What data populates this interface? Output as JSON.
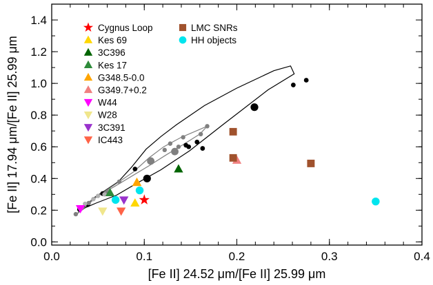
{
  "chart_data": {
    "type": "scatter",
    "title": "",
    "xlabel": "[Fe II] 24.52 μm/[Fe II] 25.99 μm",
    "ylabel": "[Fe II] 17.94 μm/[Fe II] 25.99 μm",
    "xlim": [
      0.0,
      0.4
    ],
    "ylim": [
      -0.02,
      1.5
    ],
    "xticks": [
      0.0,
      0.1,
      0.2,
      0.3,
      0.4
    ],
    "xtick_labels": [
      "0.0",
      "0.1",
      "0.2",
      "0.3",
      "0.4"
    ],
    "yticks": [
      0.0,
      0.2,
      0.4,
      0.6,
      0.8,
      1.0,
      1.2,
      1.4
    ],
    "ytick_labels": [
      "0.0",
      "0.2",
      "0.4",
      "0.6",
      "0.8",
      "1.0",
      "1.2",
      "1.4"
    ],
    "grid": false,
    "legend_position": "top-left",
    "model_curves": [
      {
        "color": "#000000",
        "points": [
          [
            0.028,
            0.18
          ],
          [
            0.033,
            0.205
          ],
          [
            0.037,
            0.23
          ],
          [
            0.046,
            0.28
          ],
          [
            0.054,
            0.31
          ],
          [
            0.072,
            0.38
          ],
          [
            0.086,
            0.47
          ],
          [
            0.102,
            0.585
          ],
          [
            0.118,
            0.665
          ],
          [
            0.135,
            0.74
          ],
          [
            0.165,
            0.86
          ],
          [
            0.2,
            0.97
          ],
          [
            0.24,
            1.08
          ],
          [
            0.258,
            1.11
          ],
          [
            0.262,
            1.06
          ],
          [
            0.234,
            0.96
          ],
          [
            0.185,
            0.74
          ],
          [
            0.149,
            0.575
          ],
          [
            0.118,
            0.455
          ],
          [
            0.092,
            0.37
          ],
          [
            0.07,
            0.295
          ],
          [
            0.048,
            0.245
          ],
          [
            0.036,
            0.215
          ],
          [
            0.03,
            0.19
          ],
          [
            0.028,
            0.18
          ]
        ]
      },
      {
        "color": "#808080",
        "points": [
          [
            0.026,
            0.17
          ],
          [
            0.03,
            0.195
          ],
          [
            0.034,
            0.22
          ],
          [
            0.043,
            0.265
          ],
          [
            0.055,
            0.31
          ],
          [
            0.073,
            0.38
          ],
          [
            0.088,
            0.44
          ],
          [
            0.105,
            0.53
          ],
          [
            0.121,
            0.6
          ],
          [
            0.14,
            0.66
          ],
          [
            0.16,
            0.71
          ],
          [
            0.168,
            0.73
          ],
          [
            0.16,
            0.68
          ],
          [
            0.141,
            0.61
          ],
          [
            0.124,
            0.55
          ],
          [
            0.105,
            0.48
          ],
          [
            0.088,
            0.42
          ],
          [
            0.068,
            0.35
          ],
          [
            0.05,
            0.29
          ],
          [
            0.038,
            0.23
          ],
          [
            0.03,
            0.19
          ],
          [
            0.026,
            0.17
          ]
        ]
      }
    ],
    "model_points": [
      {
        "color": "#000000",
        "size": 3.4,
        "points": [
          [
            0.03,
            0.205
          ],
          [
            0.039,
            0.235
          ],
          [
            0.055,
            0.305
          ],
          [
            0.09,
            0.46
          ],
          [
            0.145,
            0.61
          ],
          [
            0.148,
            0.6
          ],
          [
            0.157,
            0.63
          ],
          [
            0.163,
            0.59
          ],
          [
            0.261,
            0.99
          ],
          [
            0.275,
            1.02
          ]
        ]
      },
      {
        "color": "#000000",
        "size": 5.6,
        "points": [
          [
            0.103,
            0.4
          ],
          [
            0.219,
            0.85
          ]
        ]
      },
      {
        "color": "#808080",
        "size": 3.2,
        "points": [
          [
            0.026,
            0.175
          ],
          [
            0.033,
            0.215
          ],
          [
            0.04,
            0.245
          ],
          [
            0.06,
            0.31
          ],
          [
            0.073,
            0.38
          ],
          [
            0.122,
            0.58
          ],
          [
            0.128,
            0.62
          ],
          [
            0.137,
            0.6
          ],
          [
            0.142,
            0.66
          ],
          [
            0.161,
            0.68
          ],
          [
            0.168,
            0.73
          ]
        ]
      },
      {
        "color": "#808080",
        "size": 5.4,
        "points": [
          [
            0.107,
            0.51
          ],
          [
            0.133,
            0.57
          ]
        ]
      },
      {
        "color": "#b0b0b0",
        "size": 3.2,
        "points": [
          [
            0.036,
            0.24
          ],
          [
            0.045,
            0.27
          ],
          [
            0.05,
            0.29
          ],
          [
            0.057,
            0.3
          ]
        ]
      }
    ],
    "series": [
      {
        "name": "Cygnus Loop",
        "marker": "star",
        "color": "#ff0000",
        "x": [
          0.1
        ],
        "y": [
          0.265
        ]
      },
      {
        "name": "Kes 69",
        "marker": "triangle-up",
        "color": "#ffd700",
        "x": [
          0.09,
          0.092
        ],
        "y": [
          0.245,
          0.375
        ]
      },
      {
        "name": "3C396",
        "marker": "triangle-up",
        "color": "#006400",
        "x": [
          0.137
        ],
        "y": [
          0.46
        ]
      },
      {
        "name": "Kes 17",
        "marker": "triangle-up",
        "color": "#2e8b3a",
        "x": [
          0.063
        ],
        "y": [
          0.31
        ]
      },
      {
        "name": "G348.5-0.0",
        "marker": "triangle-up",
        "color": "#ffa500",
        "x": [
          0.092
        ],
        "y": [
          0.375
        ]
      },
      {
        "name": "G349.7+0.2",
        "marker": "triangle-up",
        "color": "#f08080",
        "x": [
          0.2
        ],
        "y": [
          0.515
        ]
      },
      {
        "name": "W44",
        "marker": "triangle-down",
        "color": "#ff00ff",
        "x": [
          0.031
        ],
        "y": [
          0.21
        ]
      },
      {
        "name": "W28",
        "marker": "triangle-down",
        "color": "#f0e68c",
        "x": [
          0.055
        ],
        "y": [
          0.195
        ]
      },
      {
        "name": "3C391",
        "marker": "triangle-down",
        "color": "#9932cc",
        "x": [
          0.078
        ],
        "y": [
          0.265
        ]
      },
      {
        "name": "IC443",
        "marker": "triangle-down",
        "color": "#ff6347",
        "x": [
          0.075
        ],
        "y": [
          0.195
        ]
      },
      {
        "name": "LMC SNRs",
        "marker": "square",
        "color": "#a0522d",
        "x": [
          0.196,
          0.196,
          0.28
        ],
        "y": [
          0.695,
          0.53,
          0.495
        ]
      },
      {
        "name": "HH objects",
        "marker": "circle",
        "color": "#00e5ee",
        "x": [
          0.069,
          0.095,
          0.35
        ],
        "y": [
          0.265,
          0.325,
          0.255
        ]
      }
    ]
  }
}
